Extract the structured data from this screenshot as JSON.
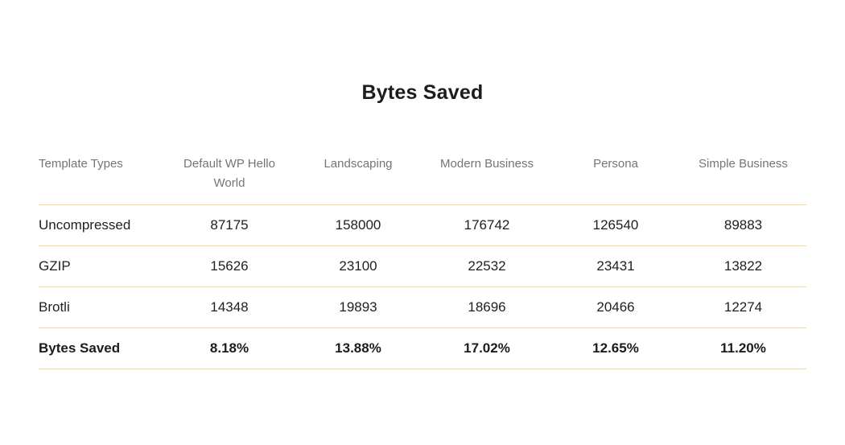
{
  "chart_data": {
    "type": "table",
    "title": "Bytes Saved",
    "columns": [
      "Template Types",
      "Default WP Hello World",
      "Landscaping",
      "Modern Business",
      "Persona",
      "Simple Business"
    ],
    "rows": [
      {
        "label": "Uncompressed",
        "values": [
          "87175",
          "158000",
          "176742",
          "126540",
          "89883"
        ],
        "bold": false
      },
      {
        "label": "GZIP",
        "values": [
          "15626",
          "23100",
          "22532",
          "23431",
          "13822"
        ],
        "bold": false
      },
      {
        "label": "Brotli",
        "values": [
          "14348",
          "19893",
          "18696",
          "20466",
          "12274"
        ],
        "bold": false
      },
      {
        "label": "Bytes Saved",
        "values": [
          "8.18%",
          "13.88%",
          "17.02%",
          "12.65%",
          "11.20%"
        ],
        "bold": true
      }
    ],
    "layout": {
      "title_position": "top-center",
      "grid": "horizontal-dividers-only"
    }
  },
  "colors": {
    "background": "#ffffff",
    "divider": "#f3d79b",
    "header_text": "#757575",
    "body_text": "#212121",
    "title_text": "#1c1c1c"
  }
}
